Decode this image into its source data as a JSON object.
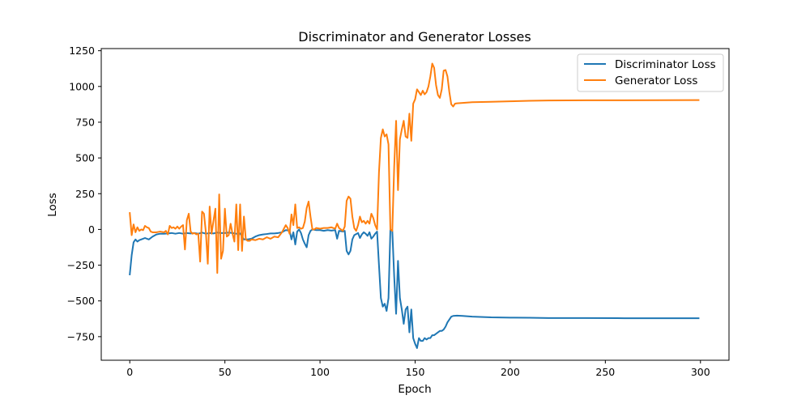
{
  "chart_data": {
    "type": "line",
    "title": "Discriminator and Generator Losses",
    "xlabel": "Epoch",
    "ylabel": "Loss",
    "xlim": [
      -15,
      315
    ],
    "ylim": [
      -915,
      1265
    ],
    "xticks": [
      0,
      50,
      100,
      150,
      200,
      250,
      300
    ],
    "yticks": [
      -750,
      -500,
      -250,
      0,
      250,
      500,
      750,
      1000,
      1250
    ],
    "grid": false,
    "legend_position": "top-right",
    "series": [
      {
        "name": "Discriminator Loss",
        "color": "#1f77b4",
        "points": [
          [
            0,
            -315
          ],
          [
            1,
            -180
          ],
          [
            2,
            -90
          ],
          [
            3,
            -70
          ],
          [
            4,
            -85
          ],
          [
            5,
            -75
          ],
          [
            6,
            -70
          ],
          [
            8,
            -60
          ],
          [
            10,
            -70
          ],
          [
            12,
            -50
          ],
          [
            14,
            -35
          ],
          [
            16,
            -30
          ],
          [
            18,
            -30
          ],
          [
            20,
            -28
          ],
          [
            22,
            -25
          ],
          [
            24,
            -30
          ],
          [
            26,
            -25
          ],
          [
            28,
            -30
          ],
          [
            30,
            -25
          ],
          [
            32,
            -28
          ],
          [
            34,
            -25
          ],
          [
            36,
            -30
          ],
          [
            38,
            -22
          ],
          [
            40,
            -30
          ],
          [
            42,
            -25
          ],
          [
            44,
            -28
          ],
          [
            46,
            -22
          ],
          [
            48,
            -25
          ],
          [
            50,
            -25
          ],
          [
            52,
            -22
          ],
          [
            54,
            -25
          ],
          [
            56,
            -30
          ],
          [
            58,
            -28
          ],
          [
            60,
            -70
          ],
          [
            62,
            -70
          ],
          [
            64,
            -65
          ],
          [
            66,
            -50
          ],
          [
            68,
            -40
          ],
          [
            70,
            -35
          ],
          [
            72,
            -32
          ],
          [
            74,
            -28
          ],
          [
            76,
            -28
          ],
          [
            78,
            -25
          ],
          [
            80,
            -20
          ],
          [
            82,
            -5
          ],
          [
            84,
            -8
          ],
          [
            85,
            -70
          ],
          [
            86,
            -20
          ],
          [
            87,
            -105
          ],
          [
            88,
            -15
          ],
          [
            89,
            0
          ],
          [
            90,
            -25
          ],
          [
            91,
            -70
          ],
          [
            92,
            -100
          ],
          [
            93,
            -125
          ],
          [
            94,
            -40
          ],
          [
            95,
            -10
          ],
          [
            96,
            0
          ],
          [
            98,
            -5
          ],
          [
            100,
            -5
          ],
          [
            102,
            -10
          ],
          [
            104,
            -5
          ],
          [
            106,
            -8
          ],
          [
            108,
            -5
          ],
          [
            109,
            -65
          ],
          [
            110,
            -10
          ],
          [
            112,
            -15
          ],
          [
            113,
            -10
          ],
          [
            114,
            -150
          ],
          [
            115,
            -175
          ],
          [
            116,
            -150
          ],
          [
            117,
            -70
          ],
          [
            118,
            -40
          ],
          [
            120,
            -25
          ],
          [
            121,
            -60
          ],
          [
            122,
            -35
          ],
          [
            123,
            -20
          ],
          [
            124,
            -30
          ],
          [
            125,
            -45
          ],
          [
            126,
            -20
          ],
          [
            127,
            -65
          ],
          [
            128,
            -50
          ],
          [
            129,
            -30
          ],
          [
            130,
            -15
          ],
          [
            131,
            -250
          ],
          [
            132,
            -480
          ],
          [
            133,
            -540
          ],
          [
            134,
            -520
          ],
          [
            135,
            -570
          ],
          [
            136,
            -480
          ],
          [
            137,
            0
          ],
          [
            138,
            -10
          ],
          [
            139,
            -330
          ],
          [
            140,
            -590
          ],
          [
            141,
            -220
          ],
          [
            142,
            -480
          ],
          [
            143,
            -560
          ],
          [
            144,
            -660
          ],
          [
            145,
            -560
          ],
          [
            146,
            -540
          ],
          [
            147,
            -720
          ],
          [
            148,
            -560
          ],
          [
            149,
            -760
          ],
          [
            150,
            -800
          ],
          [
            151,
            -830
          ],
          [
            152,
            -760
          ],
          [
            153,
            -780
          ],
          [
            154,
            -780
          ],
          [
            155,
            -760
          ],
          [
            156,
            -770
          ],
          [
            157,
            -760
          ],
          [
            158,
            -760
          ],
          [
            159,
            -740
          ],
          [
            160,
            -740
          ],
          [
            161,
            -730
          ],
          [
            162,
            -720
          ],
          [
            163,
            -710
          ],
          [
            164,
            -710
          ],
          [
            165,
            -700
          ],
          [
            166,
            -680
          ],
          [
            167,
            -650
          ],
          [
            168,
            -630
          ],
          [
            169,
            -610
          ],
          [
            170,
            -605
          ],
          [
            172,
            -603
          ],
          [
            175,
            -605
          ],
          [
            180,
            -610
          ],
          [
            190,
            -615
          ],
          [
            200,
            -617
          ],
          [
            210,
            -618
          ],
          [
            220,
            -620
          ],
          [
            240,
            -620
          ],
          [
            260,
            -621
          ],
          [
            280,
            -621
          ],
          [
            299,
            -621
          ]
        ]
      },
      {
        "name": "Generator Loss",
        "color": "#ff7f0e",
        "points": [
          [
            0,
            115
          ],
          [
            1,
            -40
          ],
          [
            2,
            35
          ],
          [
            3,
            -20
          ],
          [
            4,
            15
          ],
          [
            5,
            -10
          ],
          [
            6,
            0
          ],
          [
            7,
            -5
          ],
          [
            8,
            25
          ],
          [
            9,
            15
          ],
          [
            10,
            10
          ],
          [
            11,
            -15
          ],
          [
            12,
            -20
          ],
          [
            14,
            -20
          ],
          [
            16,
            -15
          ],
          [
            18,
            -20
          ],
          [
            19,
            -10
          ],
          [
            20,
            -35
          ],
          [
            21,
            25
          ],
          [
            22,
            10
          ],
          [
            23,
            15
          ],
          [
            24,
            5
          ],
          [
            25,
            20
          ],
          [
            26,
            5
          ],
          [
            27,
            20
          ],
          [
            28,
            30
          ],
          [
            29,
            -140
          ],
          [
            30,
            65
          ],
          [
            31,
            110
          ],
          [
            32,
            -15
          ],
          [
            33,
            -30
          ],
          [
            34,
            -25
          ],
          [
            35,
            -35
          ],
          [
            36,
            -30
          ],
          [
            37,
            -225
          ],
          [
            38,
            125
          ],
          [
            39,
            110
          ],
          [
            40,
            -20
          ],
          [
            41,
            -240
          ],
          [
            42,
            160
          ],
          [
            43,
            -30
          ],
          [
            44,
            60
          ],
          [
            45,
            145
          ],
          [
            46,
            -305
          ],
          [
            47,
            245
          ],
          [
            48,
            -205
          ],
          [
            49,
            -150
          ],
          [
            50,
            145
          ],
          [
            51,
            -50
          ],
          [
            52,
            -40
          ],
          [
            53,
            40
          ],
          [
            54,
            -30
          ],
          [
            55,
            -85
          ],
          [
            56,
            175
          ],
          [
            57,
            -145
          ],
          [
            58,
            175
          ],
          [
            59,
            -150
          ],
          [
            60,
            90
          ],
          [
            61,
            -70
          ],
          [
            62,
            -80
          ],
          [
            63,
            -80
          ],
          [
            64,
            -70
          ],
          [
            66,
            -75
          ],
          [
            68,
            -65
          ],
          [
            70,
            -70
          ],
          [
            72,
            -55
          ],
          [
            74,
            -65
          ],
          [
            76,
            -50
          ],
          [
            78,
            -55
          ],
          [
            80,
            -20
          ],
          [
            82,
            30
          ],
          [
            83,
            10
          ],
          [
            84,
            -30
          ],
          [
            85,
            105
          ],
          [
            86,
            30
          ],
          [
            87,
            175
          ],
          [
            88,
            10
          ],
          [
            89,
            15
          ],
          [
            90,
            5
          ],
          [
            91,
            10
          ],
          [
            92,
            55
          ],
          [
            93,
            150
          ],
          [
            94,
            195
          ],
          [
            95,
            90
          ],
          [
            96,
            0
          ],
          [
            97,
            0
          ],
          [
            98,
            10
          ],
          [
            100,
            5
          ],
          [
            102,
            10
          ],
          [
            104,
            10
          ],
          [
            106,
            15
          ],
          [
            108,
            5
          ],
          [
            109,
            40
          ],
          [
            110,
            10
          ],
          [
            112,
            -10
          ],
          [
            113,
            20
          ],
          [
            114,
            200
          ],
          [
            115,
            230
          ],
          [
            116,
            215
          ],
          [
            117,
            90
          ],
          [
            118,
            10
          ],
          [
            119,
            -10
          ],
          [
            120,
            30
          ],
          [
            121,
            90
          ],
          [
            122,
            50
          ],
          [
            123,
            60
          ],
          [
            124,
            40
          ],
          [
            125,
            60
          ],
          [
            126,
            40
          ],
          [
            127,
            110
          ],
          [
            128,
            80
          ],
          [
            129,
            30
          ],
          [
            130,
            0
          ],
          [
            131,
            400
          ],
          [
            132,
            640
          ],
          [
            133,
            700
          ],
          [
            134,
            650
          ],
          [
            135,
            665
          ],
          [
            136,
            595
          ],
          [
            137,
            0
          ],
          [
            138,
            -10
          ],
          [
            139,
            440
          ],
          [
            140,
            760
          ],
          [
            141,
            275
          ],
          [
            142,
            630
          ],
          [
            143,
            700
          ],
          [
            144,
            760
          ],
          [
            145,
            650
          ],
          [
            146,
            640
          ],
          [
            147,
            810
          ],
          [
            148,
            620
          ],
          [
            149,
            880
          ],
          [
            150,
            910
          ],
          [
            151,
            980
          ],
          [
            152,
            960
          ],
          [
            153,
            940
          ],
          [
            154,
            970
          ],
          [
            155,
            945
          ],
          [
            156,
            960
          ],
          [
            157,
            1000
          ],
          [
            158,
            1070
          ],
          [
            159,
            1160
          ],
          [
            160,
            1130
          ],
          [
            161,
            1010
          ],
          [
            162,
            940
          ],
          [
            163,
            920
          ],
          [
            164,
            980
          ],
          [
            165,
            1110
          ],
          [
            166,
            1115
          ],
          [
            167,
            1070
          ],
          [
            168,
            960
          ],
          [
            169,
            875
          ],
          [
            170,
            860
          ],
          [
            171,
            880
          ],
          [
            172,
            882
          ],
          [
            175,
            885
          ],
          [
            180,
            890
          ],
          [
            190,
            893
          ],
          [
            200,
            896
          ],
          [
            210,
            900
          ],
          [
            220,
            902
          ],
          [
            240,
            903
          ],
          [
            260,
            903
          ],
          [
            280,
            904
          ],
          [
            299,
            905
          ]
        ]
      }
    ]
  }
}
